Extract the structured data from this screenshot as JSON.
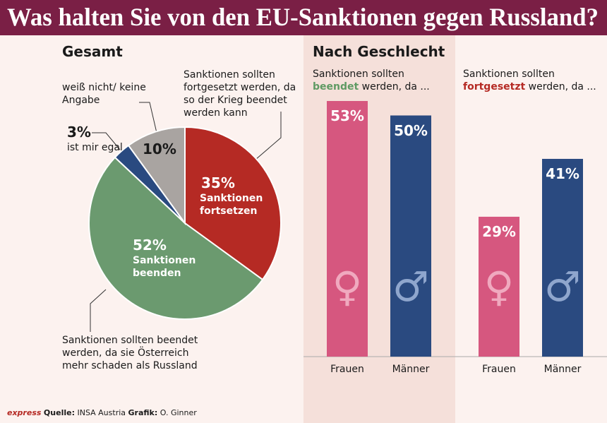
{
  "title": "Was halten Sie von den EU-Sanktionen gegen Russland?",
  "section_title": "Nach Geschlecht",
  "chart_data": [
    {
      "type": "pie",
      "title": "Gesamt",
      "categories": [
        "Sanktionen fortsetzen",
        "Sanktionen beenden",
        "ist mir egal",
        "weiß nicht/ keine Angabe"
      ],
      "values": [
        35,
        52,
        3,
        10
      ],
      "value_labels": [
        "35%",
        "52%",
        "3%",
        "10%"
      ],
      "colors": [
        "#b52a24",
        "#6b9a6f",
        "#2a4a80",
        "#a9a4a1"
      ],
      "annotations": [
        "Sanktionen sollten fortgesetzt werden, da so der Krieg beendet werden kann",
        "Sanktionen sollten beendet werden, da sie Österreich mehr schaden als Russland"
      ]
    },
    {
      "type": "bar",
      "subtitle_parts": [
        "Sanktionen sollten ",
        "beendet",
        " werden, da ..."
      ],
      "highlight_color": "#5f9a63",
      "categories": [
        "Frauen",
        "Männer"
      ],
      "values": [
        53,
        50
      ],
      "value_labels": [
        "53%",
        "50%"
      ],
      "colors": [
        "#d6577f",
        "#2a4a80"
      ]
    },
    {
      "type": "bar",
      "subtitle_parts": [
        "Sanktionen sollten ",
        "fortgesetzt",
        " werden, da ..."
      ],
      "highlight_color": "#b52a24",
      "categories": [
        "Frauen",
        "Männer"
      ],
      "values": [
        29,
        41
      ],
      "value_labels": [
        "29%",
        "41%"
      ],
      "colors": [
        "#d6577f",
        "#2a4a80"
      ]
    }
  ],
  "footer": {
    "logo": "express",
    "source_label": "Quelle:",
    "source": "INSA Austria",
    "credit_label": "Grafik:",
    "credit": "O. Ginner"
  }
}
